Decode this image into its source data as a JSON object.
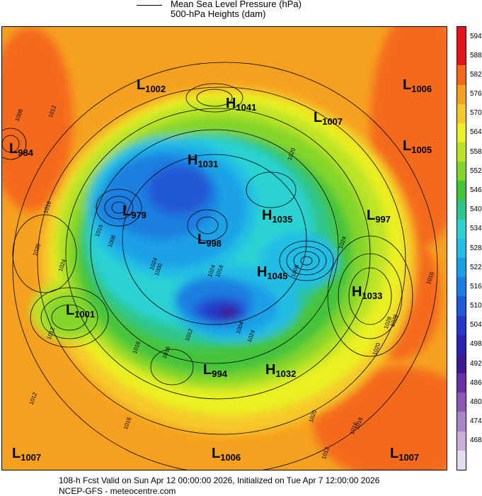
{
  "legend": {
    "line1": "Mean Sea Level Pressure (hPa)",
    "line2": "500-hPa Heights (dam)"
  },
  "colorbar": {
    "labels": [
      "594",
      "588",
      "582",
      "576",
      "570",
      "564",
      "558",
      "552",
      "546",
      "540",
      "534",
      "528",
      "522",
      "516",
      "510",
      "504",
      "498",
      "492",
      "486",
      "480",
      "474",
      "468"
    ],
    "colors": [
      "#e5111b",
      "#f46a1a",
      "#f6a020",
      "#f6c92a",
      "#eaf023",
      "#bce426",
      "#84d52a",
      "#44c43b",
      "#2ec68c",
      "#2ad2d2",
      "#24bde4",
      "#1ba0e6",
      "#1c7fe0",
      "#2159d6",
      "#2539c8",
      "#2b23b2",
      "#3d1a94",
      "#6a2fa0",
      "#8b58b4",
      "#a985c6",
      "#c8b0d9",
      "#e6dcef"
    ],
    "top_color": "#e5111b"
  },
  "centers": [
    {
      "type": "L",
      "value": "1002"
    },
    {
      "type": "H",
      "value": "1041"
    },
    {
      "type": "L",
      "value": "1006"
    },
    {
      "type": "L",
      "value": "1007"
    },
    {
      "type": "L",
      "value": "984"
    },
    {
      "type": "H",
      "value": "1031"
    },
    {
      "type": "L",
      "value": "1005"
    },
    {
      "type": "L",
      "value": "979"
    },
    {
      "type": "H",
      "value": "1035"
    },
    {
      "type": "L",
      "value": "997"
    },
    {
      "type": "L",
      "value": "998"
    },
    {
      "type": "H",
      "value": "1045"
    },
    {
      "type": "H",
      "value": "1033"
    },
    {
      "type": "L",
      "value": "1001"
    },
    {
      "type": "L",
      "value": "994"
    },
    {
      "type": "H",
      "value": "1032"
    },
    {
      "type": "L",
      "value": "1007"
    },
    {
      "type": "L",
      "value": "1006"
    },
    {
      "type": "L",
      "value": "1007"
    }
  ],
  "isobar_labels": [
    "1008",
    "1012",
    "1016",
    "1020",
    "1024",
    "1016",
    "1008",
    "1020",
    "1024",
    "1000",
    "1016",
    "1024",
    "1016",
    "1012",
    "1016",
    "1024",
    "1028",
    "1020",
    "1016",
    "1012",
    "1016",
    "1012",
    "1020",
    "1028",
    "1016",
    "1012",
    "1008",
    "1004",
    "1024",
    "1016"
  ],
  "footer": {
    "line1": "108-h Fcst Valid on Sun Apr 12 00:00:00 2026, Initialized on Tue Apr  7 12:00:00 2026",
    "line2": "NCEP-GFS  -  meteocentre.com"
  }
}
